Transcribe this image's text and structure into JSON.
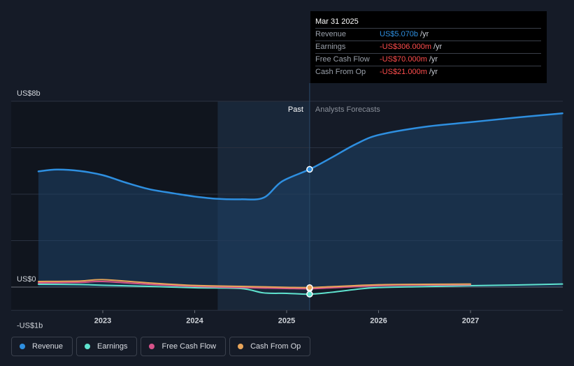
{
  "chart_data": {
    "type": "line",
    "title": "",
    "xlabel": "",
    "ylabel": "",
    "y_unit_labels": [
      "US$8b",
      "US$0",
      "-US$1b"
    ],
    "ylim": [
      -1,
      8
    ],
    "x_ticks": [
      "2023",
      "2024",
      "2025",
      "2026",
      "2027"
    ],
    "past_label": "Past",
    "forecast_label": "Analysts Forecasts",
    "divider_date": 2025.25,
    "series": [
      {
        "name": "Revenue",
        "color": "#2e8fe0",
        "points": [
          [
            2022.3,
            4.98
          ],
          [
            2022.5,
            5.06
          ],
          [
            2022.75,
            5.0
          ],
          [
            2023.0,
            4.82
          ],
          [
            2023.25,
            4.5
          ],
          [
            2023.5,
            4.22
          ],
          [
            2023.75,
            4.05
          ],
          [
            2024.0,
            3.9
          ],
          [
            2024.25,
            3.8
          ],
          [
            2024.5,
            3.78
          ],
          [
            2024.75,
            3.85
          ],
          [
            2024.95,
            4.55
          ],
          [
            2025.25,
            5.07
          ],
          [
            2025.5,
            5.6
          ],
          [
            2025.75,
            6.15
          ],
          [
            2026.0,
            6.55
          ],
          [
            2026.5,
            6.9
          ],
          [
            2027.0,
            7.1
          ],
          [
            2027.5,
            7.3
          ],
          [
            2028.0,
            7.48
          ]
        ]
      },
      {
        "name": "Earnings",
        "color": "#5fe3cf",
        "points": [
          [
            2022.3,
            0.12
          ],
          [
            2022.75,
            0.11
          ],
          [
            2023.0,
            0.08
          ],
          [
            2023.5,
            0.03
          ],
          [
            2024.0,
            -0.03
          ],
          [
            2024.5,
            -0.06
          ],
          [
            2024.75,
            -0.25
          ],
          [
            2025.0,
            -0.27
          ],
          [
            2025.25,
            -0.306
          ],
          [
            2025.5,
            -0.22
          ],
          [
            2025.75,
            -0.1
          ],
          [
            2026.0,
            -0.02
          ],
          [
            2026.5,
            0.02
          ],
          [
            2027.0,
            0.06
          ],
          [
            2027.5,
            0.09
          ],
          [
            2028.0,
            0.13
          ]
        ]
      },
      {
        "name": "Free Cash Flow",
        "color": "#d6538a",
        "points": [
          [
            2022.3,
            0.18
          ],
          [
            2022.75,
            0.2
          ],
          [
            2023.0,
            0.24
          ],
          [
            2023.5,
            0.12
          ],
          [
            2024.0,
            0.03
          ],
          [
            2024.5,
            -0.02
          ],
          [
            2025.0,
            -0.06
          ],
          [
            2025.25,
            -0.07
          ],
          [
            2025.5,
            -0.03
          ],
          [
            2026.0,
            0.06
          ],
          [
            2026.5,
            0.09
          ],
          [
            2027.0,
            0.1
          ]
        ]
      },
      {
        "name": "Cash From Op",
        "color": "#e8a55a",
        "points": [
          [
            2022.3,
            0.24
          ],
          [
            2022.75,
            0.26
          ],
          [
            2023.0,
            0.32
          ],
          [
            2023.5,
            0.18
          ],
          [
            2024.0,
            0.07
          ],
          [
            2024.5,
            0.03
          ],
          [
            2025.0,
            -0.01
          ],
          [
            2025.25,
            -0.021
          ],
          [
            2025.5,
            0.02
          ],
          [
            2026.0,
            0.1
          ],
          [
            2026.5,
            0.12
          ],
          [
            2027.0,
            0.13
          ]
        ]
      }
    ],
    "highlight_date": 2025.25,
    "legend_position": "bottom-left"
  },
  "tooltip": {
    "date": "Mar 31 2025",
    "rows": [
      {
        "label": "Revenue",
        "value": "US$5.070b",
        "unit": "/yr",
        "color": "#2e8fe0"
      },
      {
        "label": "Earnings",
        "value": "-US$306.000m",
        "unit": "/yr",
        "color": "#ff4d4d"
      },
      {
        "label": "Free Cash Flow",
        "value": "-US$70.000m",
        "unit": "/yr",
        "color": "#ff4d4d"
      },
      {
        "label": "Cash From Op",
        "value": "-US$21.000m",
        "unit": "/yr",
        "color": "#ff4d4d"
      }
    ]
  },
  "legend": [
    {
      "label": "Revenue",
      "color": "#2e8fe0"
    },
    {
      "label": "Earnings",
      "color": "#5fe3cf"
    },
    {
      "label": "Free Cash Flow",
      "color": "#d6538a"
    },
    {
      "label": "Cash From Op",
      "color": "#e8a55a"
    }
  ]
}
